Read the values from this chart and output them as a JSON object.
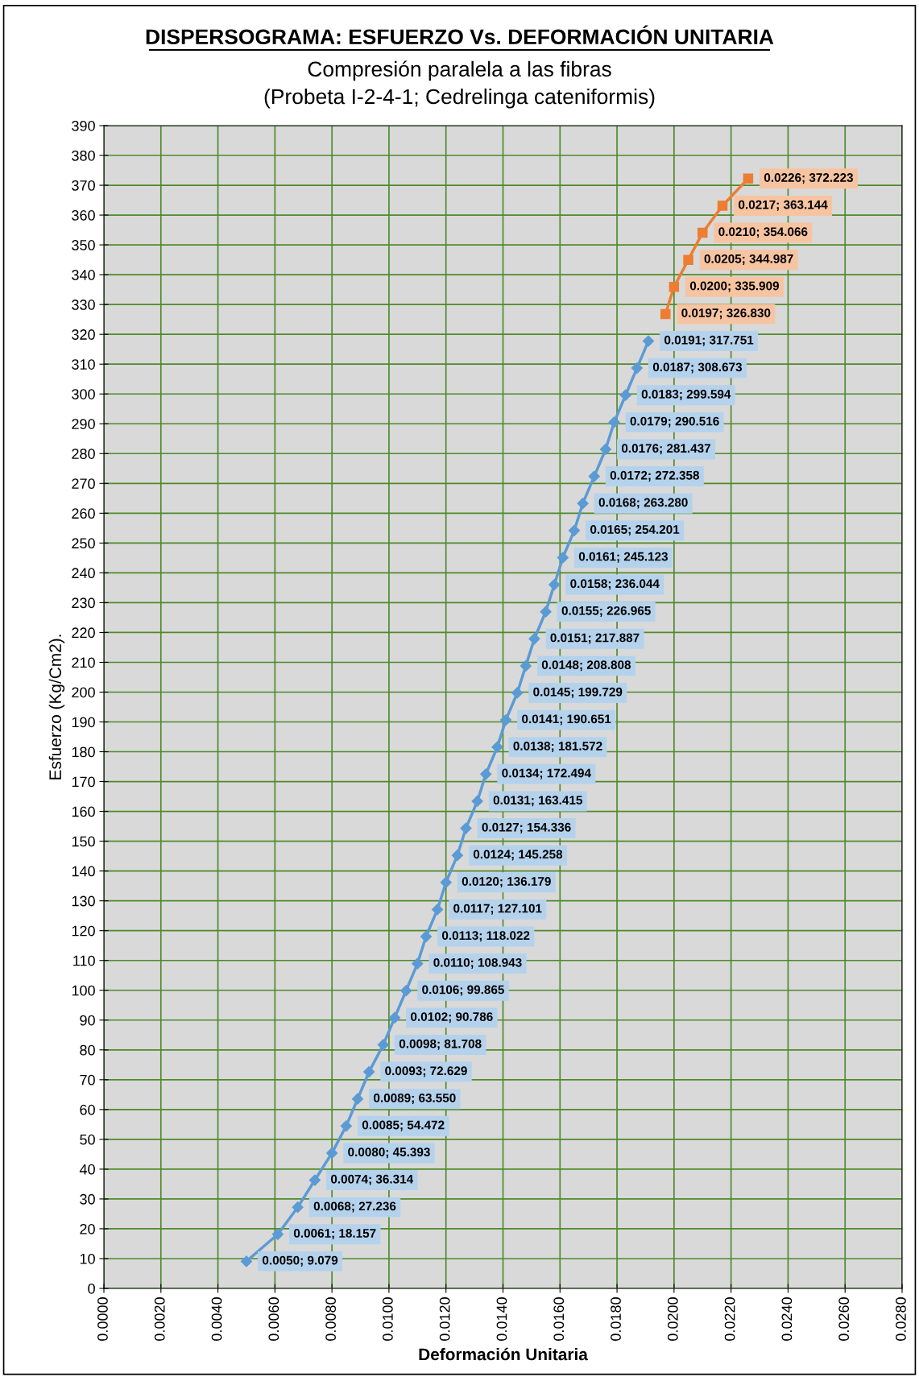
{
  "chart_data": {
    "type": "line",
    "title": "DISPERSOGRAMA: ESFUERZO Vs. DEFORMACIÓN UNITARIA",
    "subtitle": "Compresión paralela a las fibras\n(Probeta I-2-4-1; Cedrelinga cateniformis)",
    "xlabel": "Deformación Unitaria",
    "ylabel": "Esfuerzo (Kg/Cm2).",
    "xlim": [
      0,
      0.028
    ],
    "ylim": [
      0,
      390
    ],
    "xticks": [
      {
        "value": 0,
        "label": "0.0000"
      },
      {
        "value": 0.002,
        "label": "0.0020"
      },
      {
        "value": 0.004,
        "label": "0.0040"
      },
      {
        "value": 0.006,
        "label": "0.0060"
      },
      {
        "value": 0.008,
        "label": "0.0080"
      },
      {
        "value": 0.01,
        "label": "0.0100"
      },
      {
        "value": 0.012,
        "label": "0.0120"
      },
      {
        "value": 0.014,
        "label": "0.0140"
      },
      {
        "value": 0.016,
        "label": "0.0160"
      },
      {
        "value": 0.018,
        "label": "0.0180"
      },
      {
        "value": 0.02,
        "label": "0.0200"
      },
      {
        "value": 0.022,
        "label": "0.0220"
      },
      {
        "value": 0.024,
        "label": "0.0240"
      },
      {
        "value": 0.026,
        "label": "0.0260"
      },
      {
        "value": 0.028,
        "label": "0.0280"
      }
    ],
    "yticks": [
      0,
      10,
      20,
      30,
      40,
      50,
      60,
      70,
      80,
      90,
      100,
      110,
      120,
      130,
      140,
      150,
      160,
      170,
      180,
      190,
      200,
      210,
      220,
      230,
      240,
      250,
      260,
      270,
      280,
      290,
      300,
      310,
      320,
      330,
      340,
      350,
      360,
      370,
      380,
      390
    ],
    "grid": true,
    "legend": false,
    "series": [
      {
        "color": "#5b9bd5",
        "marker": "diamond",
        "line_style": "solid",
        "x": [
          0.005,
          0.0061,
          0.0068,
          0.0074,
          0.008,
          0.0085,
          0.0089,
          0.0093,
          0.0098,
          0.0102,
          0.0106,
          0.011,
          0.0113,
          0.0117,
          0.012,
          0.0124,
          0.0127,
          0.0131,
          0.0134,
          0.0138,
          0.0141,
          0.0145,
          0.0148,
          0.0151,
          0.0155,
          0.0158,
          0.0161,
          0.0165,
          0.0168,
          0.0172,
          0.0176,
          0.0179,
          0.0183,
          0.0187,
          0.0191
        ],
        "values": [
          9.079,
          18.157,
          27.236,
          36.314,
          45.393,
          54.472,
          63.55,
          72.629,
          81.708,
          90.786,
          99.865,
          108.943,
          118.022,
          127.101,
          136.179,
          145.258,
          154.336,
          163.415,
          172.494,
          181.572,
          190.651,
          199.729,
          208.808,
          217.887,
          226.965,
          236.044,
          245.123,
          254.201,
          263.28,
          272.358,
          281.437,
          290.516,
          299.594,
          308.673,
          317.751
        ],
        "value_labels": [
          "0.0050; 9.079",
          "0.0061; 18.157",
          "0.0068; 27.236",
          "0.0074; 36.314",
          "0.0080; 45.393",
          "0.0085; 54.472",
          "0.0089; 63.550",
          "0.0093; 72.629",
          "0.0098; 81.708",
          "0.0102; 90.786",
          "0.0106; 99.865",
          "0.0110; 108.943",
          "0.0113; 118.022",
          "0.0117; 127.101",
          "0.0120; 136.179",
          "0.0124; 145.258",
          "0.0127; 154.336",
          "0.0131; 163.415",
          "0.0134; 172.494",
          "0.0138; 181.572",
          "0.0141; 190.651",
          "0.0145; 199.729",
          "0.0148; 208.808",
          "0.0151; 217.887",
          "0.0155; 226.965",
          "0.0158; 236.044",
          "0.0161; 245.123",
          "0.0165; 254.201",
          "0.0168; 263.280",
          "0.0172; 272.358",
          "0.0176; 281.437",
          "0.0179; 290.516",
          "0.0183; 299.594",
          "0.0187; 308.673",
          "0.0191; 317.751"
        ]
      },
      {
        "color": "#ed7d31",
        "marker": "square",
        "line_style": "solid",
        "x": [
          0.0197,
          0.02,
          0.0205,
          0.021,
          0.0217,
          0.0226
        ],
        "values": [
          326.83,
          335.909,
          344.987,
          354.066,
          363.144,
          372.223
        ],
        "value_labels": [
          "0.0197; 326.830",
          "0.0200; 335.909",
          "0.0205; 344.987",
          "0.0210; 354.066",
          "0.0217; 363.144",
          "0.0226; 372.223"
        ]
      }
    ]
  }
}
